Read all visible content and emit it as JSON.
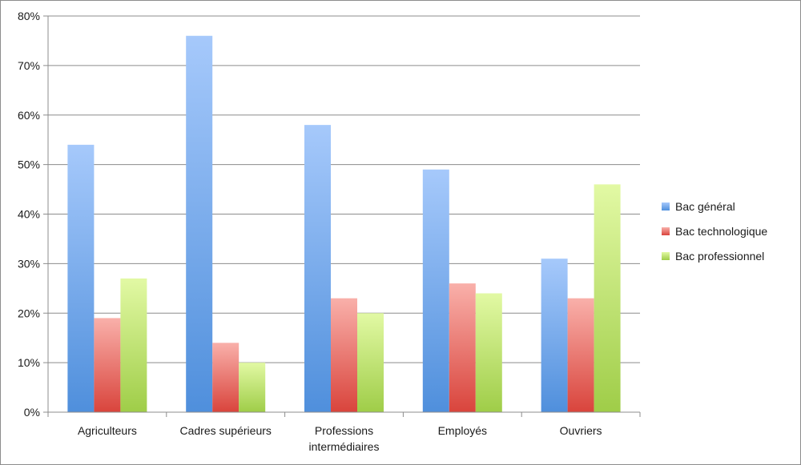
{
  "chart_data": {
    "type": "bar",
    "categories": [
      [
        "Agriculteurs"
      ],
      [
        "Cadres supérieurs"
      ],
      [
        "Professions",
        "intermédiaires"
      ],
      [
        "Employés"
      ],
      [
        "Ouvriers"
      ]
    ],
    "series": [
      {
        "name": "Bac général",
        "values": [
          54,
          76,
          58,
          49,
          31
        ],
        "color": "#4f8fdc",
        "color_light": "#a6c9fb"
      },
      {
        "name": "Bac technologique",
        "values": [
          19,
          14,
          23,
          26,
          23
        ],
        "color": "#d9443c",
        "color_light": "#f9b0aa"
      },
      {
        "name": "Bac professionnel",
        "values": [
          27,
          10,
          20,
          24,
          46
        ],
        "color": "#9fcd48",
        "color_light": "#e2f9a4"
      }
    ],
    "y_ticks": [
      "0%",
      "10%",
      "20%",
      "30%",
      "40%",
      "50%",
      "60%",
      "70%",
      "80%"
    ],
    "ylim": [
      0,
      80
    ],
    "grid": true,
    "legend_position": "right"
  }
}
